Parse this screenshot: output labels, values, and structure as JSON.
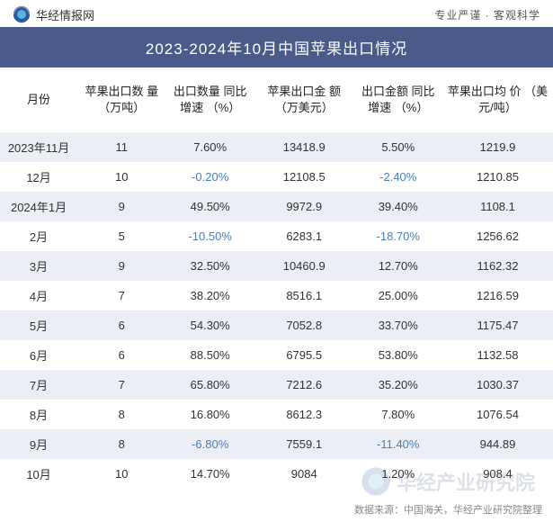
{
  "header": {
    "site_name": "华经情报网",
    "tagline": "专业严谨 · 客观科学",
    "logo_color_outer": "#2b5aa0",
    "logo_color_inner": "#5ab4d8"
  },
  "title": "2023-2024年10月中国苹果出口情况",
  "title_bar_bg": "#4a5b8a",
  "columns": [
    "月份",
    "苹果出口数\n量\n（万吨）",
    "出口数量\n同比增速\n（%）",
    "苹果出口金\n额\n（万美元）",
    "出口金额\n同比增速\n（%）",
    "苹果出口均\n价\n（美元/吨）"
  ],
  "rows": [
    {
      "month": "2023年11月",
      "qty": "11",
      "qty_yoy": "7.60%",
      "val": "13418.9",
      "val_yoy": "5.50%",
      "price": "1219.9",
      "qty_neg": false,
      "val_neg": false
    },
    {
      "month": "12月",
      "qty": "10",
      "qty_yoy": "-0.20%",
      "val": "12108.5",
      "val_yoy": "-2.40%",
      "price": "1210.85",
      "qty_neg": true,
      "val_neg": true
    },
    {
      "month": "2024年1月",
      "qty": "9",
      "qty_yoy": "49.50%",
      "val": "9972.9",
      "val_yoy": "39.40%",
      "price": "1108.1",
      "qty_neg": false,
      "val_neg": false
    },
    {
      "month": "2月",
      "qty": "5",
      "qty_yoy": "-10.50%",
      "val": "6283.1",
      "val_yoy": "-18.70%",
      "price": "1256.62",
      "qty_neg": true,
      "val_neg": true
    },
    {
      "month": "3月",
      "qty": "9",
      "qty_yoy": "32.50%",
      "val": "10460.9",
      "val_yoy": "12.70%",
      "price": "1162.32",
      "qty_neg": false,
      "val_neg": false
    },
    {
      "month": "4月",
      "qty": "7",
      "qty_yoy": "38.20%",
      "val": "8516.1",
      "val_yoy": "25.00%",
      "price": "1216.59",
      "qty_neg": false,
      "val_neg": false
    },
    {
      "month": "5月",
      "qty": "6",
      "qty_yoy": "54.30%",
      "val": "7052.8",
      "val_yoy": "33.70%",
      "price": "1175.47",
      "qty_neg": false,
      "val_neg": false
    },
    {
      "month": "6月",
      "qty": "6",
      "qty_yoy": "88.50%",
      "val": "6795.5",
      "val_yoy": "53.80%",
      "price": "1132.58",
      "qty_neg": false,
      "val_neg": false
    },
    {
      "month": "7月",
      "qty": "7",
      "qty_yoy": "65.80%",
      "val": "7212.6",
      "val_yoy": "35.20%",
      "price": "1030.37",
      "qty_neg": false,
      "val_neg": false
    },
    {
      "month": "8月",
      "qty": "8",
      "qty_yoy": "16.80%",
      "val": "8612.3",
      "val_yoy": "7.80%",
      "price": "1076.54",
      "qty_neg": false,
      "val_neg": false
    },
    {
      "month": "9月",
      "qty": "8",
      "qty_yoy": "-6.80%",
      "val": "7559.1",
      "val_yoy": "-11.40%",
      "price": "944.89",
      "qty_neg": true,
      "val_neg": true
    },
    {
      "month": "10月",
      "qty": "10",
      "qty_yoy": "14.70%",
      "val": "9084",
      "val_yoy": "1.20%",
      "price": "908.4",
      "qty_neg": false,
      "val_neg": false
    }
  ],
  "stripe_bg": "#ebeef5",
  "negative_color": "#4a7fb5",
  "footer": "数据来源：中国海关，华经产业研究院整理",
  "watermark_text": "华经产业研究院"
}
